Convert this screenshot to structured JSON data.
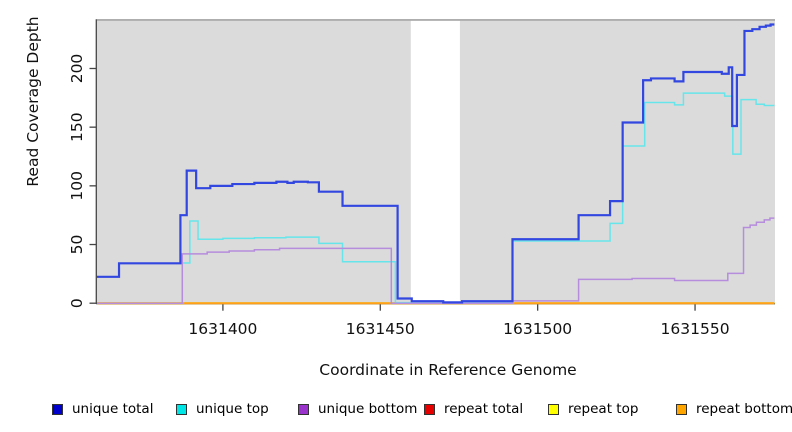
{
  "axes": {
    "x_label": "Coordinate in Reference Genome",
    "y_label": "Read Coverage Depth",
    "x_ticks": [
      1631400,
      1631450,
      1631500,
      1631550
    ],
    "y_ticks": [
      0,
      50,
      100,
      150,
      200
    ],
    "x_range": [
      1631360,
      1631575.4
    ],
    "y_range": [
      0,
      242
    ]
  },
  "chart_data": {
    "type": "line",
    "step": true,
    "title": "",
    "xlabel": "Coordinate in Reference Genome",
    "ylabel": "Read Coverage Depth",
    "xlim": [
      1631360,
      1631575.4
    ],
    "ylim": [
      0,
      242
    ],
    "grid": false,
    "plot_bg": "#DBDBDB",
    "gap_region": {
      "x_start": 1631459.7,
      "x_end": 1631475.3,
      "color": "#FFFFFF"
    },
    "series": [
      {
        "name": "repeat total",
        "color": "#DD2222",
        "width": 1.4,
        "points": [
          [
            1631360,
            0
          ],
          [
            1631575.2,
            0
          ]
        ]
      },
      {
        "name": "repeat top",
        "color": "#F0F000",
        "width": 1.8,
        "points": [
          [
            1631360,
            0
          ],
          [
            1631575.2,
            0
          ]
        ]
      },
      {
        "name": "repeat bottom",
        "color": "#FF9E1B",
        "width": 2.0,
        "points": [
          [
            1631360,
            0
          ],
          [
            1631575.2,
            0
          ]
        ]
      },
      {
        "name": "unique top",
        "color": "#66E6EB",
        "width": 1.5,
        "points": [
          [
            1631360,
            0
          ],
          [
            1631387.1,
            34.3
          ],
          [
            1631389.5,
            70
          ],
          [
            1631392.1,
            54.5
          ],
          [
            1631400,
            55.2
          ],
          [
            1631410,
            55.8
          ],
          [
            1631420,
            56.3
          ],
          [
            1631430.5,
            51
          ],
          [
            1631438,
            35.3
          ],
          [
            1631454.8,
            0.5
          ],
          [
            1631492,
            53
          ],
          [
            1631523,
            68
          ],
          [
            1631527,
            134
          ],
          [
            1631534,
            171
          ],
          [
            1631543.5,
            169
          ],
          [
            1631546.3,
            179
          ],
          [
            1631559.4,
            176.5
          ],
          [
            1631562,
            127
          ],
          [
            1631564.6,
            173.5
          ],
          [
            1631569.4,
            169.5
          ],
          [
            1631572,
            168.5
          ],
          [
            1631575.2,
            168.5
          ]
        ]
      },
      {
        "name": "unique bottom",
        "color": "#B68CDD",
        "width": 1.5,
        "points": [
          [
            1631360,
            0
          ],
          [
            1631387.1,
            42
          ],
          [
            1631395,
            43.5
          ],
          [
            1631402,
            44.5
          ],
          [
            1631410,
            45.5
          ],
          [
            1631418,
            46.7
          ],
          [
            1631453.5,
            0
          ],
          [
            1631492,
            2
          ],
          [
            1631513,
            20.3
          ],
          [
            1631530,
            21
          ],
          [
            1631543.5,
            19.3
          ],
          [
            1631560.4,
            25.4
          ],
          [
            1631565.4,
            64.5
          ],
          [
            1631567.5,
            66.5
          ],
          [
            1631569.5,
            69
          ],
          [
            1631572,
            71
          ],
          [
            1631573.8,
            72.5
          ],
          [
            1631575.2,
            72.5
          ]
        ]
      },
      {
        "name": "unique total",
        "color": "#3246E0",
        "width": 2.2,
        "points": [
          [
            1631360,
            22.5
          ],
          [
            1631367,
            34
          ],
          [
            1631386.5,
            75
          ],
          [
            1631388.5,
            113
          ],
          [
            1631391.5,
            98
          ],
          [
            1631396,
            100
          ],
          [
            1631403,
            101.5
          ],
          [
            1631410,
            102.5
          ],
          [
            1631417,
            103.5
          ],
          [
            1631420.5,
            102.5
          ],
          [
            1631422.5,
            103.5
          ],
          [
            1631427,
            103
          ],
          [
            1631430.5,
            95
          ],
          [
            1631438,
            83
          ],
          [
            1631455.5,
            4
          ],
          [
            1631460,
            1.7
          ],
          [
            1631470,
            0.7
          ],
          [
            1631476,
            1.7
          ],
          [
            1631492,
            54.5
          ],
          [
            1631513,
            75
          ],
          [
            1631523,
            87
          ],
          [
            1631527,
            154
          ],
          [
            1631533.5,
            190
          ],
          [
            1631536,
            191.5
          ],
          [
            1631543.5,
            189
          ],
          [
            1631546.3,
            197
          ],
          [
            1631558.5,
            195.5
          ],
          [
            1631560.7,
            201
          ],
          [
            1631561.8,
            151
          ],
          [
            1631563.3,
            194.5
          ],
          [
            1631565.7,
            232
          ],
          [
            1631568.2,
            233.5
          ],
          [
            1631570.5,
            235.5
          ],
          [
            1631572.5,
            236.5
          ],
          [
            1631574,
            237.5
          ],
          [
            1631575.2,
            237.5
          ]
        ]
      }
    ]
  },
  "legend": {
    "items": [
      {
        "label": "unique total",
        "color": "#0000CC"
      },
      {
        "label": "unique top",
        "color": "#00E5E5"
      },
      {
        "label": "unique bottom",
        "color": "#9933CC"
      },
      {
        "label": "repeat total",
        "color": "#E60000"
      },
      {
        "label": "repeat top",
        "color": "#FFFF00"
      },
      {
        "label": "repeat bottom",
        "color": "#FFA500"
      }
    ]
  }
}
